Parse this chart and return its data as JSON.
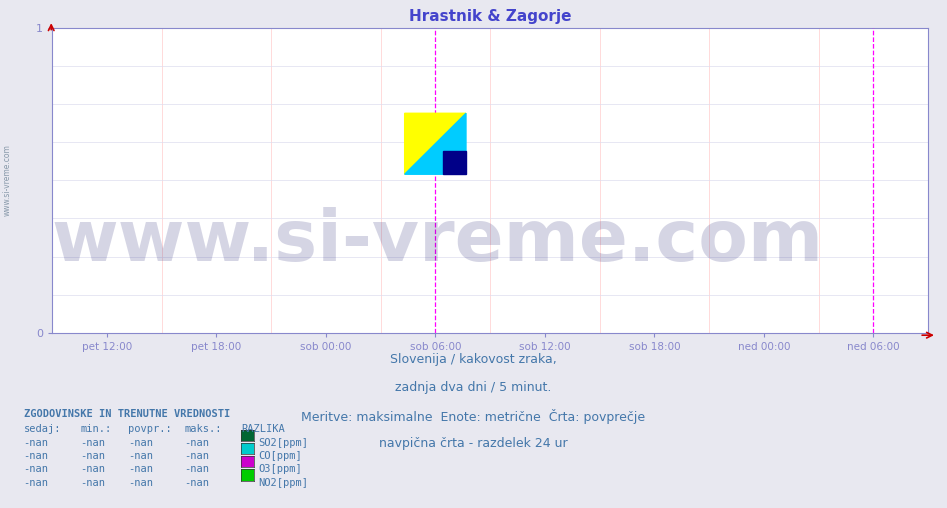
{
  "title": "Hrastnik & Zagorje",
  "title_color": "#4444cc",
  "background_color": "#e8e8f0",
  "plot_bg_color": "#ffffff",
  "grid_color_h": "#ddddee",
  "grid_color_v": "#ffaaaa",
  "axis_color": "#8888cc",
  "ylim": [
    0,
    1
  ],
  "xlabel_ticks": [
    "pet 12:00",
    "pet 18:00",
    "sob 00:00",
    "sob 06:00",
    "sob 12:00",
    "sob 18:00",
    "ned 00:00",
    "ned 06:00"
  ],
  "vline_color": "#ff00ff",
  "watermark_text": "www.si-vreme.com",
  "watermark_color": "#1a1a6e",
  "watermark_alpha": 0.18,
  "watermark_fontsize": 52,
  "subtitle_lines": [
    "Slovenija / kakovost zraka,",
    "zadnja dva dni / 5 minut.",
    "Meritve: maksimalne  Enote: metrične  Črta: povprečje",
    "navpična črta - razdelek 24 ur"
  ],
  "subtitle_color": "#4477aa",
  "subtitle_fontsize": 9,
  "legend_title": "ZGODOVINSKE IN TRENUTNE VREDNOSTI",
  "legend_headers": [
    "sedaj:",
    "min.:",
    "povpr.:",
    "maks.:",
    "RAZLIKA"
  ],
  "legend_rows": [
    [
      "-nan",
      "-nan",
      "-nan",
      "-nan",
      "SO2[ppm]",
      "#006633"
    ],
    [
      "-nan",
      "-nan",
      "-nan",
      "-nan",
      "CO[ppm]",
      "#00cccc"
    ],
    [
      "-nan",
      "-nan",
      "-nan",
      "-nan",
      "O3[ppm]",
      "#cc00cc"
    ],
    [
      "-nan",
      "-nan",
      "-nan",
      "-nan",
      "NO2[ppm]",
      "#00cc00"
    ]
  ],
  "legend_color": "#4477aa",
  "arrow_color": "#cc0000",
  "sidevreme_color": "#8899aa"
}
